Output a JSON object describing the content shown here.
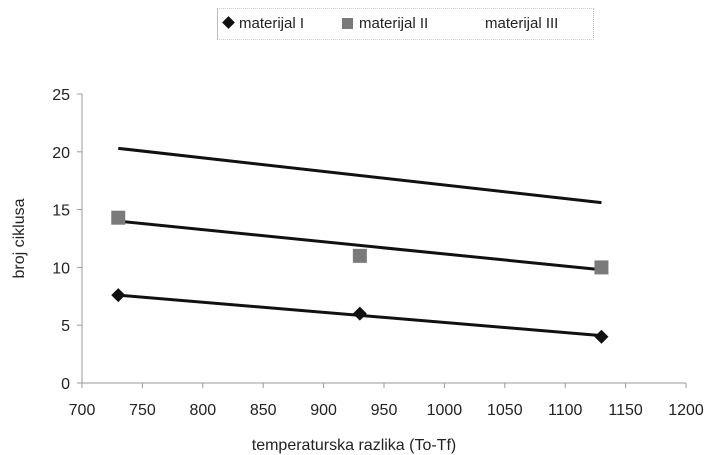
{
  "chart_data": {
    "type": "scatter",
    "title": "",
    "xlabel": "temperaturska razlika (To-Tf)",
    "ylabel": "broj ciklusa",
    "xlim": [
      700,
      1200
    ],
    "ylim": [
      0,
      25
    ],
    "xticks": [
      "700",
      "750",
      "800",
      "850",
      "900",
      "950",
      "1000",
      "1050",
      "1100",
      "1150",
      "1200"
    ],
    "yticks": [
      "0",
      "5",
      "10",
      "15",
      "20",
      "25"
    ],
    "grid": false,
    "legend_position": "top",
    "series": [
      {
        "name": "materijal I",
        "marker": "diamond",
        "color": "#111111",
        "points": [
          {
            "x": 730,
            "y": 7.6
          },
          {
            "x": 930,
            "y": 6
          },
          {
            "x": 1130,
            "y": 4
          }
        ],
        "trendline": [
          {
            "x": 730,
            "y": 7.6
          },
          {
            "x": 1130,
            "y": 4.1
          }
        ]
      },
      {
        "name": "materijal II",
        "marker": "square",
        "color": "#7a7a7a",
        "points": [
          {
            "x": 730,
            "y": 14.3
          },
          {
            "x": 930,
            "y": 11
          },
          {
            "x": 1130,
            "y": 10
          }
        ],
        "trendline": [
          {
            "x": 730,
            "y": 14
          },
          {
            "x": 1130,
            "y": 9.8
          }
        ]
      },
      {
        "name": "materijal III",
        "marker": "none",
        "color": "#111111",
        "points": [],
        "trendline": [
          {
            "x": 730,
            "y": 20.3
          },
          {
            "x": 1130,
            "y": 15.6
          }
        ]
      }
    ]
  }
}
